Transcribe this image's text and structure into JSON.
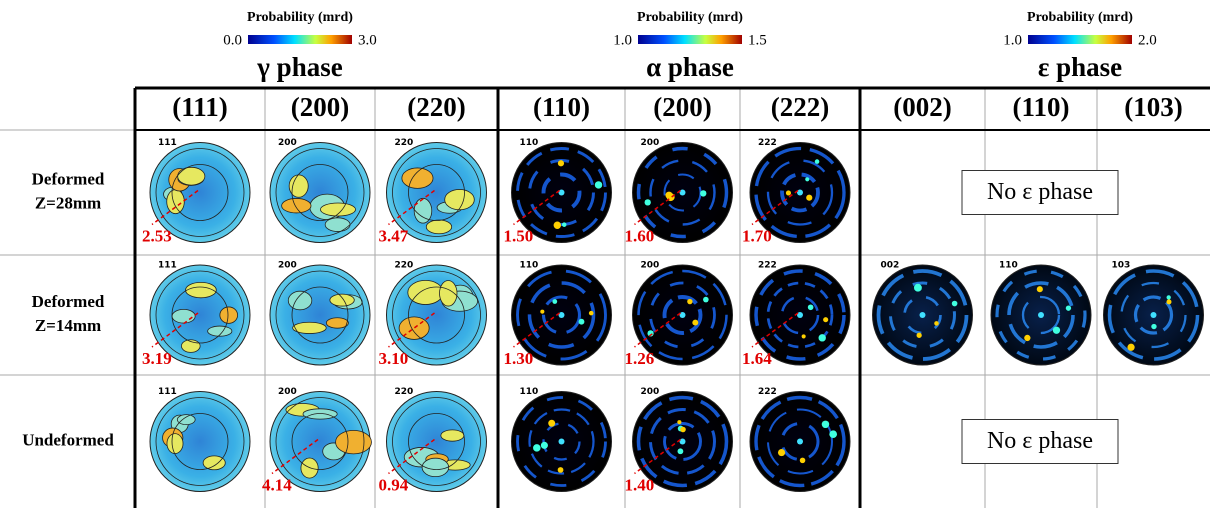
{
  "colorbars": [
    {
      "title": "Probability (mrd)",
      "min": "0.0",
      "max": "3.0"
    },
    {
      "title": "Probability (mrd)",
      "min": "1.0",
      "max": "1.5"
    },
    {
      "title": "Probability (mrd)",
      "min": "1.0",
      "max": "2.0"
    }
  ],
  "phases": [
    "γ phase",
    "α phase",
    "ε phase"
  ],
  "columns": [
    "(111)",
    "(200)",
    "(220)",
    "(110)",
    "(200)",
    "(222)",
    "(002)",
    "(110)",
    "(103)"
  ],
  "rows": [
    {
      "label": [
        "Deformed",
        "Z=28mm"
      ],
      "cells": [
        {
          "pole": "111",
          "max": "2.53"
        },
        {
          "pole": "200"
        },
        {
          "pole": "220",
          "max": "3.47"
        },
        {
          "pole": "110",
          "max": "1.50"
        },
        {
          "pole": "200",
          "max": "1.60"
        },
        {
          "pole": "222",
          "max": "1.70"
        }
      ],
      "note": "No ε phase"
    },
    {
      "label": [
        "Deformed",
        "Z=14mm"
      ],
      "cells": [
        {
          "pole": "111",
          "max": "3.19"
        },
        {
          "pole": "200"
        },
        {
          "pole": "220",
          "max": "3.10"
        },
        {
          "pole": "110",
          "max": "1.30"
        },
        {
          "pole": "200",
          "max": "1.26"
        },
        {
          "pole": "222",
          "max": "1.64"
        },
        {
          "pole": "002"
        },
        {
          "pole": "110"
        },
        {
          "pole": "103"
        }
      ]
    },
    {
      "label": [
        "Undeformed"
      ],
      "cells": [
        {
          "pole": "111"
        },
        {
          "pole": "200",
          "max": "4.14"
        },
        {
          "pole": "220",
          "max": "0.94"
        },
        {
          "pole": "110"
        },
        {
          "pole": "200",
          "max": "1.40"
        },
        {
          "pole": "222"
        }
      ],
      "note": "No ε phase"
    }
  ]
}
